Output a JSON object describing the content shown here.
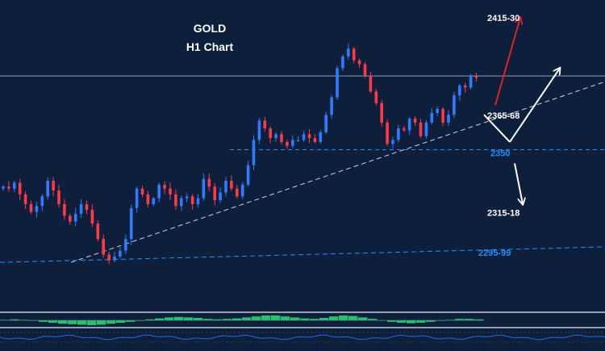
{
  "colors": {
    "background": "#0e1f3b",
    "bull_candle": "#2f7bff",
    "bear_candle": "#ff3a46",
    "level_blue": "#1e90ff",
    "level_white": "#ffffff",
    "arrow_red": "#e0202c",
    "arrow_white": "#ffffff",
    "indicator_green": "#26c26a"
  },
  "chart_data": {
    "type": "candlestick",
    "title": "GOLD",
    "subtitle": "H1 Chart",
    "price_range": [
      2290,
      2425
    ],
    "key_levels": [
      {
        "label": "2415-30",
        "value": 2415,
        "color": "#ffffff",
        "style": "label"
      },
      {
        "label": "2365-68",
        "value": 2366,
        "color": "#ffffff",
        "style": "label"
      },
      {
        "label": "2350",
        "value": 2350,
        "color": "#1e90ff",
        "style": "dashed"
      },
      {
        "label": "2315-18",
        "value": 2316,
        "color": "#ffffff",
        "style": "label"
      },
      {
        "label": "2295-99",
        "value": 2297,
        "color": "#1e90ff",
        "style": "label"
      }
    ],
    "resistance_line": {
      "value": 2388
    },
    "trendlines": [
      {
        "name": "rising-trendline",
        "from": [
          88,
          2292
        ],
        "to": [
          750,
          2385
        ],
        "color": "#c9d3e6"
      },
      {
        "name": "lower-trendline",
        "from": [
          0,
          2292
        ],
        "to": [
          750,
          2300
        ],
        "color": "#1e90ff"
      }
    ],
    "scenario_arrows": [
      {
        "name": "bullish-arrow",
        "from": [
          614,
          2373
        ],
        "to": [
          645,
          2418
        ],
        "color": "#e0202c"
      },
      {
        "name": "pullback-arrow-down",
        "from": [
          600,
          2368
        ],
        "to": [
          632,
          2354
        ],
        "color": "#ffffff"
      },
      {
        "name": "rebound-arrow-up",
        "from": [
          632,
          2354
        ],
        "to": [
          694,
          2392
        ],
        "color": "#ffffff"
      },
      {
        "name": "bearish-arrow",
        "from": [
          638,
          2343
        ],
        "to": [
          648,
          2322
        ],
        "color": "#ffffff"
      }
    ],
    "candles_close": [
      2331,
      2330,
      2333,
      2327,
      2322,
      2318,
      2321,
      2326,
      2334,
      2329,
      2322,
      2316,
      2313,
      2317,
      2322,
      2319,
      2312,
      2304,
      2296,
      2293,
      2295,
      2298,
      2304,
      2320,
      2330,
      2327,
      2322,
      2325,
      2332,
      2330,
      2327,
      2321,
      2325,
      2326,
      2322,
      2325,
      2335,
      2331,
      2324,
      2328,
      2334,
      2330,
      2326,
      2332,
      2342,
      2355,
      2365,
      2361,
      2356,
      2358,
      2354,
      2352,
      2355,
      2355,
      2358,
      2356,
      2354,
      2359,
      2368,
      2377,
      2392,
      2398,
      2402,
      2396,
      2394,
      2388,
      2380,
      2374,
      2364,
      2353,
      2355,
      2361,
      2360,
      2366,
      2364,
      2357,
      2364,
      2369,
      2371,
      2364,
      2368,
      2378,
      2383,
      2382,
      2388,
      2387
    ],
    "indicator": {
      "type": "histogram-oscillator",
      "values": [
        0.1,
        0.2,
        0.1,
        -0.1,
        -0.3,
        -0.5,
        -0.7,
        -0.8,
        -0.9,
        -1.0,
        -0.9,
        -0.7,
        -0.5,
        -0.3,
        -0.1,
        0.2,
        0.4,
        0.6,
        0.7,
        0.6,
        0.5,
        0.3,
        0.2,
        0.3,
        0.4,
        0.6,
        0.8,
        1.0,
        1.0,
        0.8,
        0.6,
        0.4,
        0.3,
        0.5,
        0.8,
        1.0,
        0.9,
        0.6,
        0.3,
        0.0,
        -0.3,
        -0.5,
        -0.6,
        -0.5,
        -0.3,
        -0.1,
        0.1,
        0.3,
        0.3,
        0.2
      ]
    }
  }
}
